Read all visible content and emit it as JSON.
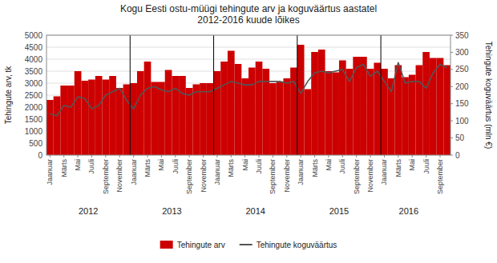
{
  "chart_data": {
    "type": "bar",
    "title": "Kogu Eesti ostu-müügi tehingute arv ja koguväärtus aastatel\n2012-2016 kuude lõikes",
    "ylabel": "Tehingute arv, tk",
    "y2label": "Tehingute koguväärtus (mln €)",
    "categories": [
      "Jaanuar",
      null,
      "Märts",
      null,
      "Mai",
      null,
      "Juuli",
      null,
      "September",
      null,
      "November",
      null,
      "Jaanuar",
      null,
      "Märts",
      null,
      "Mai",
      null,
      "Juuli",
      null,
      "September",
      null,
      "November",
      null,
      "Jaanuar",
      null,
      "Märts",
      null,
      "Mai",
      null,
      "Juuli",
      null,
      "September",
      null,
      "November",
      null,
      "Jaanuar",
      null,
      "Märts",
      null,
      "Mai",
      null,
      "Juuli",
      null,
      "September",
      null,
      "November",
      null,
      "Jaanuar",
      null,
      "Märts",
      null,
      "Mai",
      null,
      "Juuli",
      null,
      "September",
      null
    ],
    "series": [
      {
        "name": "Tehingute arv",
        "type": "bar",
        "color": "#CC0000",
        "values": [
          2300,
          2450,
          2900,
          2900,
          3500,
          3100,
          3150,
          3300,
          3150,
          3300,
          2800,
          2950,
          3000,
          3500,
          3900,
          3050,
          3050,
          3550,
          3300,
          3300,
          2800,
          2950,
          3000,
          3000,
          3500,
          3900,
          4350,
          3800,
          3200,
          3650,
          3900,
          3600,
          3000,
          3050,
          3200,
          3650,
          4600,
          2750,
          4300,
          4400,
          3500,
          3450,
          3950,
          3600,
          4100,
          4100,
          3600,
          3850,
          3600,
          3200,
          3750,
          3250,
          3350,
          3750,
          4300,
          4050,
          4050,
          3750
        ]
      },
      {
        "name": "Tehingute koguväärtus",
        "type": "line",
        "color": "#555555",
        "axis": "y2",
        "values": [
          120,
          115,
          145,
          140,
          170,
          165,
          135,
          145,
          175,
          185,
          195,
          160,
          135,
          175,
          195,
          200,
          190,
          185,
          195,
          180,
          175,
          185,
          185,
          185,
          195,
          205,
          215,
          210,
          205,
          205,
          215,
          215,
          215,
          215,
          210,
          215,
          180,
          215,
          240,
          245,
          240,
          245,
          250,
          215,
          255,
          265,
          230,
          245,
          215,
          185,
          270,
          210,
          215,
          215,
          195,
          240,
          265,
          255
        ]
      }
    ],
    "ylim": [
      0,
      5000
    ],
    "yticks": [
      0,
      500,
      1000,
      1500,
      2000,
      2500,
      3000,
      3500,
      4000,
      4500,
      5000
    ],
    "y2lim": [
      0,
      350
    ],
    "y2ticks": [
      0,
      50,
      100,
      150,
      200,
      250,
      300,
      350
    ],
    "annotations": [
      {
        "text": "2012",
        "x": 5.5
      },
      {
        "text": "2013",
        "x": 17.5
      },
      {
        "text": "2014",
        "x": 29.5
      },
      {
        "text": "2015",
        "x": 41.5
      },
      {
        "text": "2016",
        "x": 51.5
      }
    ],
    "dividers": [
      11.5,
      23.5,
      35.5,
      47.5
    ],
    "grid": true,
    "legend": "bottom"
  }
}
